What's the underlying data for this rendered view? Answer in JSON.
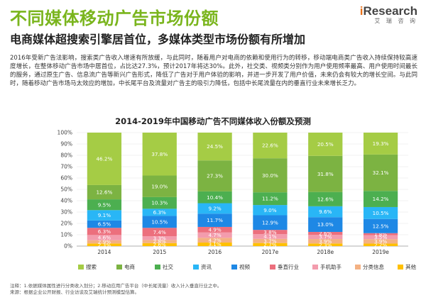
{
  "page": {
    "title": "不同媒体移动广告市场份额",
    "subtitle": "电商媒体超搜索引擎居首位，多媒体类型市场份额有所增加",
    "paragraph": "2016年受新广告法影响，搜索类广告收入增速有所放缓，与此同时，随着用户对电商的依赖和使用行为的转移，移动端电商类广告收入持续保持较高速度增长，在整体移动广告市场中居首位，占比达27.3%，预计2017年将达30%。此外，社交类、视频类分别作为用户使用频率最高、用户使用时间最长的服务，通过原生广告、信息流广告等新兴广告形式，降低了广告对于用户体验的影响，并进一步开发了用户价值，未来仍会有较大的增长空间。与此同时，随着移动广告市场马太效应的增加，中长尾平台及流量对广告主的吸引力降低，包括中长尾流量在内的垂直行业未来增长乏力。",
    "notes_1": "注释：1.依据媒体属性进行分类收入划分；2.移动应用广告平台（中长尾流量）收入计入垂直行业之中。",
    "notes_2": "来源：根据企业公开财报、行业访谈及艾瑞统计预测模型估算。"
  },
  "logo": {
    "prefix": "i",
    "name": "Research",
    "sub": "艾 瑞 咨 询"
  },
  "colors": {
    "title": "#7ab51d",
    "series": [
      "#a5cc45",
      "#7cb342",
      "#4caf50",
      "#29b6f6",
      "#1e88e5",
      "#ec6f7d",
      "#f39cad",
      "#f4b183",
      "#ffc000"
    ]
  },
  "chart_data": {
    "type": "bar",
    "stacked": true,
    "title": "2014-2019年中国移动广告不同媒体收入份额及预测",
    "categories": [
      "2014",
      "2015",
      "2016",
      "2017e",
      "2018e",
      "2019e"
    ],
    "y_ticks": [
      "0%",
      "10%",
      "20%",
      "30%",
      "40%",
      "50%",
      "60%",
      "70%",
      "80%",
      "90%",
      "100%"
    ],
    "ylim": [
      0,
      100
    ],
    "legend_position": "bottom",
    "series": [
      {
        "name": "搜索",
        "values": [
          46.2,
          37.8,
          24.5,
          22.6,
          20.5,
          19.3
        ]
      },
      {
        "name": "电商",
        "values": [
          12.6,
          19.0,
          27.3,
          30.0,
          31.8,
          32.1
        ]
      },
      {
        "name": "社交",
        "values": [
          9.5,
          10.3,
          10.4,
          11.2,
          12.6,
          14.2
        ]
      },
      {
        "name": "资讯",
        "values": [
          9.1,
          6.3,
          9.2,
          9.0,
          9.6,
          10.5
        ]
      },
      {
        "name": "视频",
        "values": [
          6.5,
          10.5,
          11.7,
          12.9,
          13.0,
          12.5
        ]
      },
      {
        "name": "垂直行业",
        "values": [
          6.3,
          7.4,
          4.9,
          3.8,
          2.6,
          1.8
        ]
      },
      {
        "name": "手机助手",
        "values": [
          4.6,
          3.3,
          4.7,
          4.1,
          3.7,
          3.5
        ]
      },
      {
        "name": "分类信息",
        "values": [
          2.9,
          2.8,
          4.2,
          3.7,
          3.9,
          3.9
        ]
      },
      {
        "name": "其他",
        "values": [
          2.3,
          2.6,
          3.1,
          2.7,
          2.3,
          2.2
        ]
      }
    ]
  }
}
